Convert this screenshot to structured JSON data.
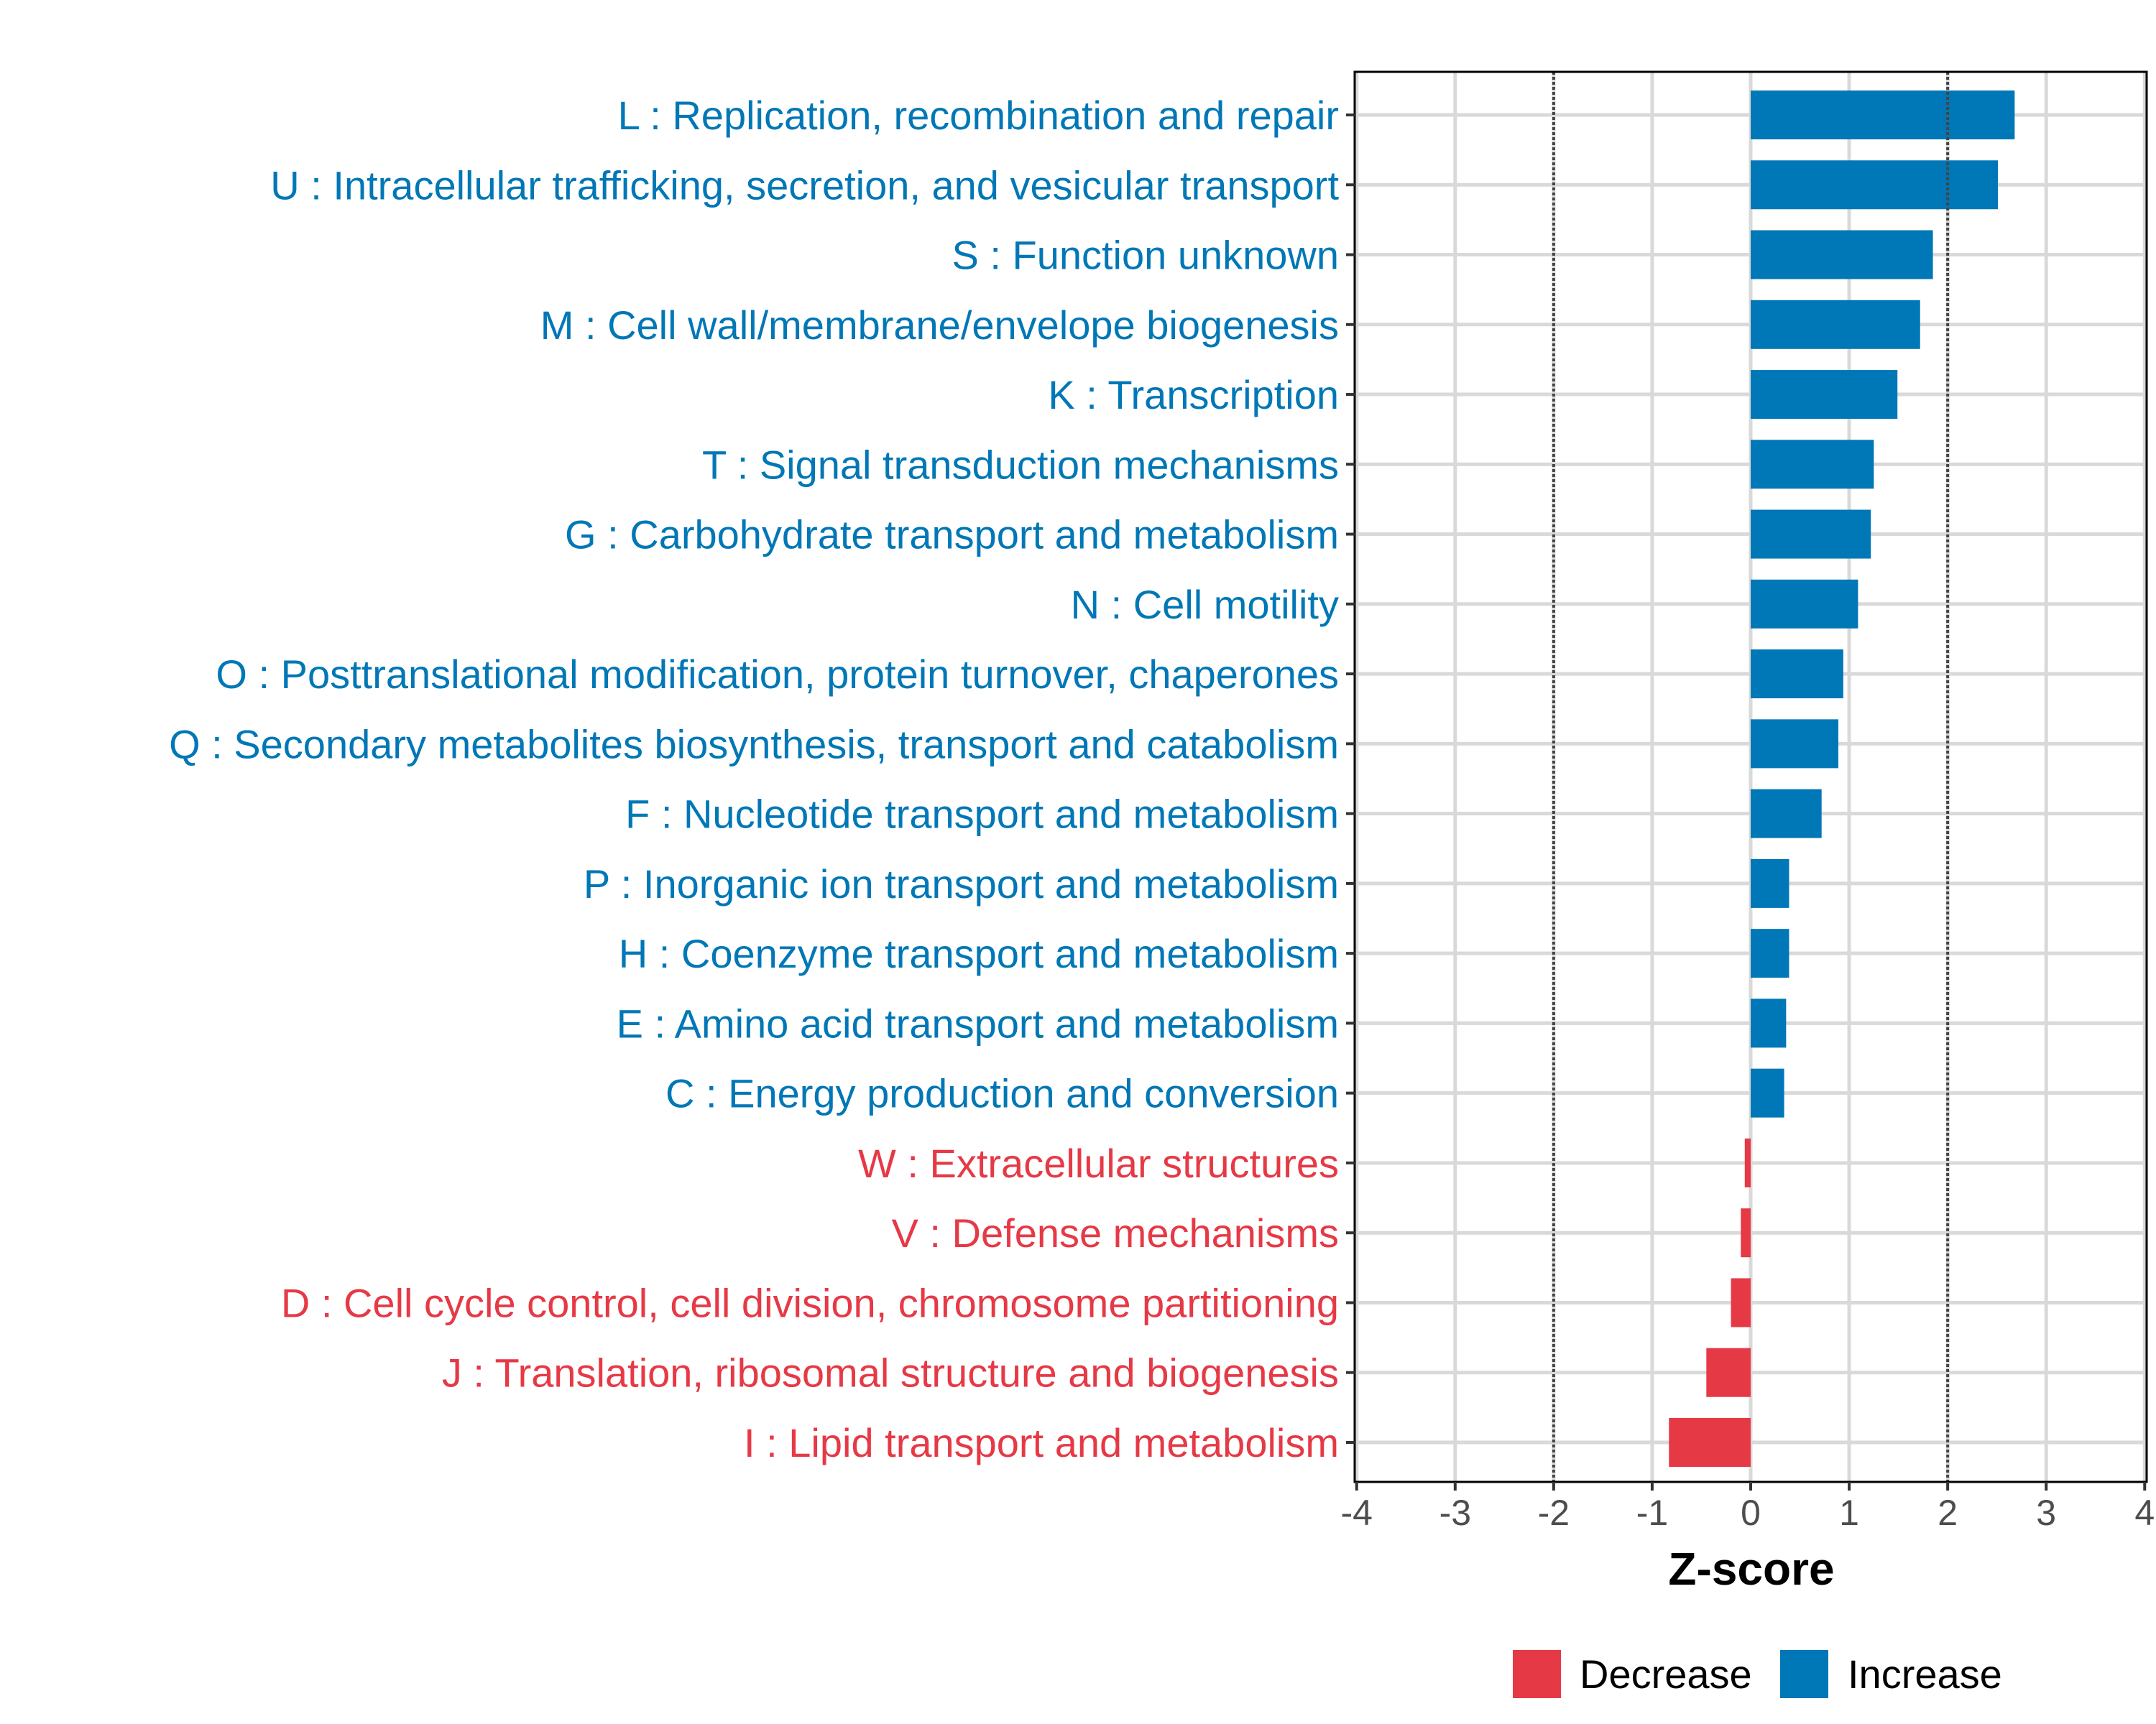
{
  "chart_data": {
    "type": "bar",
    "orientation": "horizontal",
    "title": "",
    "xlabel": "Z-score",
    "ylabel": "",
    "xlim": [
      -4,
      4
    ],
    "xticks": [
      -4,
      -3,
      -2,
      -1,
      0,
      1,
      2,
      3,
      4
    ],
    "xtick_labels": [
      "-4",
      "-3",
      "-2",
      "-1",
      "0",
      "1",
      "2",
      "3",
      "4"
    ],
    "reference_lines": [
      -2,
      2
    ],
    "grid": true,
    "legend": {
      "placement": "bottom",
      "entries": [
        {
          "label": "Decrease",
          "color": "#E63946"
        },
        {
          "label": "Increase",
          "color": "#0077B6"
        }
      ]
    },
    "categories": [
      "L : Replication, recombination and repair",
      "U : Intracellular trafficking, secretion, and vesicular transport",
      "S : Function unknown",
      "M : Cell wall/membrane/envelope biogenesis",
      "K : Transcription",
      "T : Signal transduction mechanisms",
      "G : Carbohydrate transport and metabolism",
      "N : Cell motility",
      "O : Posttranslational modification, protein turnover, chaperones",
      "Q : Secondary metabolites biosynthesis, transport and catabolism",
      "F : Nucleotide transport and metabolism",
      "P : Inorganic ion transport and metabolism",
      "H : Coenzyme transport and metabolism",
      "E : Amino acid transport and metabolism",
      "C : Energy production and conversion",
      "W : Extracellular structures",
      "V : Defense mechanisms",
      "D : Cell cycle control, cell division, chromosome partitioning",
      "J : Translation, ribosomal structure and biogenesis",
      "I : Lipid transport and metabolism"
    ],
    "values": [
      2.68,
      2.51,
      1.85,
      1.72,
      1.49,
      1.25,
      1.22,
      1.09,
      0.94,
      0.89,
      0.72,
      0.39,
      0.39,
      0.36,
      0.34,
      -0.06,
      -0.1,
      -0.2,
      -0.45,
      -0.83
    ],
    "groups": [
      "Increase",
      "Increase",
      "Increase",
      "Increase",
      "Increase",
      "Increase",
      "Increase",
      "Increase",
      "Increase",
      "Increase",
      "Increase",
      "Increase",
      "Increase",
      "Increase",
      "Increase",
      "Decrease",
      "Decrease",
      "Decrease",
      "Decrease",
      "Decrease"
    ]
  }
}
